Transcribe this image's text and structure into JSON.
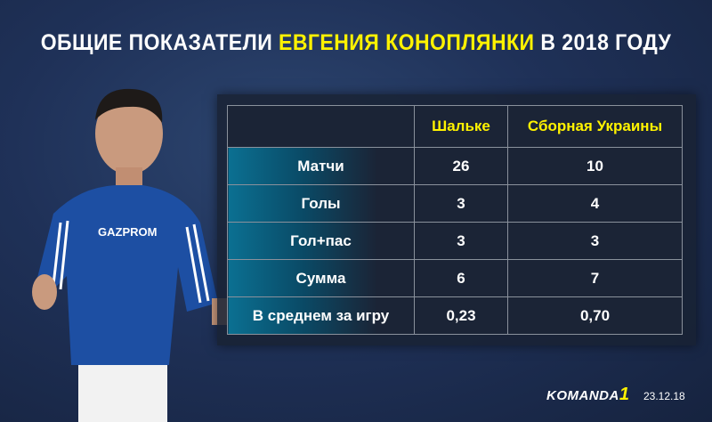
{
  "title": {
    "part1": "ОБЩИЕ ПОКАЗАТЕЛИ",
    "highlight": "ЕВГЕНИЯ КОНОПЛЯНКИ",
    "part2": "В 2018 ГОДУ"
  },
  "colors": {
    "accent": "#fff200",
    "background": "#1f3158",
    "row_label": "#0b7092"
  },
  "table": {
    "columns": [
      "",
      "Шальке",
      "Сборная Украины"
    ],
    "rows": [
      {
        "label": "Матчи",
        "values": [
          "26",
          "10"
        ]
      },
      {
        "label": "Голы",
        "values": [
          "3",
          "4"
        ]
      },
      {
        "label": "Гол+пас",
        "values": [
          "3",
          "3"
        ]
      },
      {
        "label": "Сумма",
        "values": [
          "6",
          "7"
        ]
      },
      {
        "label": "В среднем за игру",
        "values": [
          "0,23",
          "0,70"
        ]
      }
    ]
  },
  "player_shirt_text": "GAZPROM",
  "logo": {
    "text": "KOMANDA",
    "suffix": "1"
  },
  "date": "23.12.18"
}
